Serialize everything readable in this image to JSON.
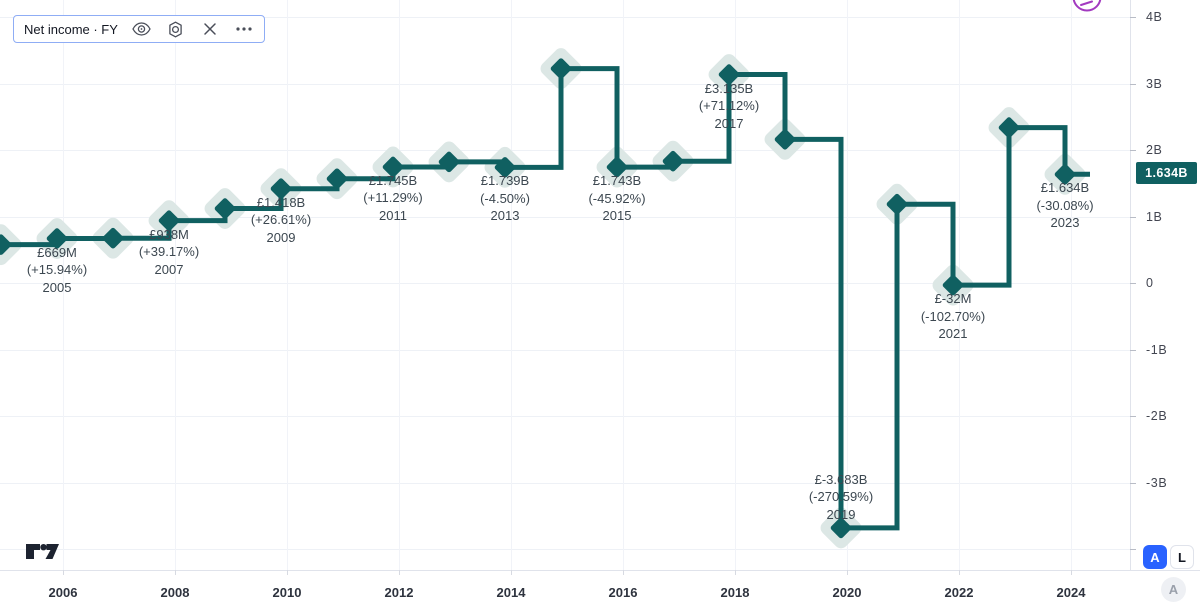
{
  "legend": {
    "title": "Net income · FY"
  },
  "price_axis": {
    "labels": [
      "4B",
      "3B",
      "2B",
      "1B",
      "0",
      "-1B",
      "-2B",
      "-3B"
    ],
    "current_value": "1.634B"
  },
  "time_axis": {
    "labels": [
      "2006",
      "2008",
      "2010",
      "2012",
      "2014",
      "2016",
      "2018",
      "2020",
      "2022",
      "2024"
    ]
  },
  "buttons": {
    "auto": "A",
    "log": "L",
    "watermark": "A"
  },
  "colors": {
    "series": "#106061",
    "halo": "#dce7e5",
    "badge_bg": "#106061",
    "accent_blue": "#2962ff",
    "purple": "#a23ac0"
  },
  "chart_data": {
    "type": "line",
    "subtype": "step-line-with-diamond-markers",
    "title": "Net income · FY",
    "unit": "GBP billions",
    "ylim": [
      -4,
      4
    ],
    "grid": true,
    "points": [
      {
        "fiscal_year": 2004,
        "value_b": 0.577
      },
      {
        "fiscal_year": 2005,
        "value_b": 0.669,
        "label": {
          "value": "£669M",
          "change": "(+15.94%)",
          "year": "2005",
          "position": "below"
        }
      },
      {
        "fiscal_year": 2006,
        "value_b": 0.674
      },
      {
        "fiscal_year": 2007,
        "value_b": 0.938,
        "label": {
          "value": "£938M",
          "change": "(+39.17%)",
          "year": "2007",
          "position": "below"
        }
      },
      {
        "fiscal_year": 2008,
        "value_b": 1.12
      },
      {
        "fiscal_year": 2009,
        "value_b": 1.418,
        "label": {
          "value": "£1.418B",
          "change": "(+26.61%)",
          "year": "2009",
          "position": "below"
        }
      },
      {
        "fiscal_year": 2010,
        "value_b": 1.568
      },
      {
        "fiscal_year": 2011,
        "value_b": 1.745,
        "label": {
          "value": "£1.745B",
          "change": "(+11.29%)",
          "year": "2011",
          "position": "below"
        }
      },
      {
        "fiscal_year": 2012,
        "value_b": 1.821
      },
      {
        "fiscal_year": 2013,
        "value_b": 1.739,
        "label": {
          "value": "£1.739B",
          "change": "(-4.50%)",
          "year": "2013",
          "position": "below"
        }
      },
      {
        "fiscal_year": 2014,
        "value_b": 3.224
      },
      {
        "fiscal_year": 2015,
        "value_b": 1.743,
        "label": {
          "value": "£1.743B",
          "change": "(-45.92%)",
          "year": "2015",
          "position": "below"
        }
      },
      {
        "fiscal_year": 2016,
        "value_b": 1.832
      },
      {
        "fiscal_year": 2017,
        "value_b": 3.135,
        "label": {
          "value": "£3.135B",
          "change": "(+71.12%)",
          "year": "2017",
          "position": "below"
        }
      },
      {
        "fiscal_year": 2018,
        "value_b": 2.16
      },
      {
        "fiscal_year": 2019,
        "value_b": -3.683,
        "label": {
          "value": "£-3.683B",
          "change": "(-270.59%)",
          "year": "2019",
          "position": "above"
        }
      },
      {
        "fiscal_year": 2020,
        "value_b": 1.185
      },
      {
        "fiscal_year": 2021,
        "value_b": -0.032,
        "label": {
          "value": "£-32M",
          "change": "(-102.70%)",
          "year": "2021",
          "position": "below"
        }
      },
      {
        "fiscal_year": 2022,
        "value_b": 2.337
      },
      {
        "fiscal_year": 2023,
        "value_b": 1.634,
        "label": {
          "value": "£1.634B",
          "change": "(-30.08%)",
          "year": "2023",
          "position": "below"
        }
      }
    ]
  }
}
